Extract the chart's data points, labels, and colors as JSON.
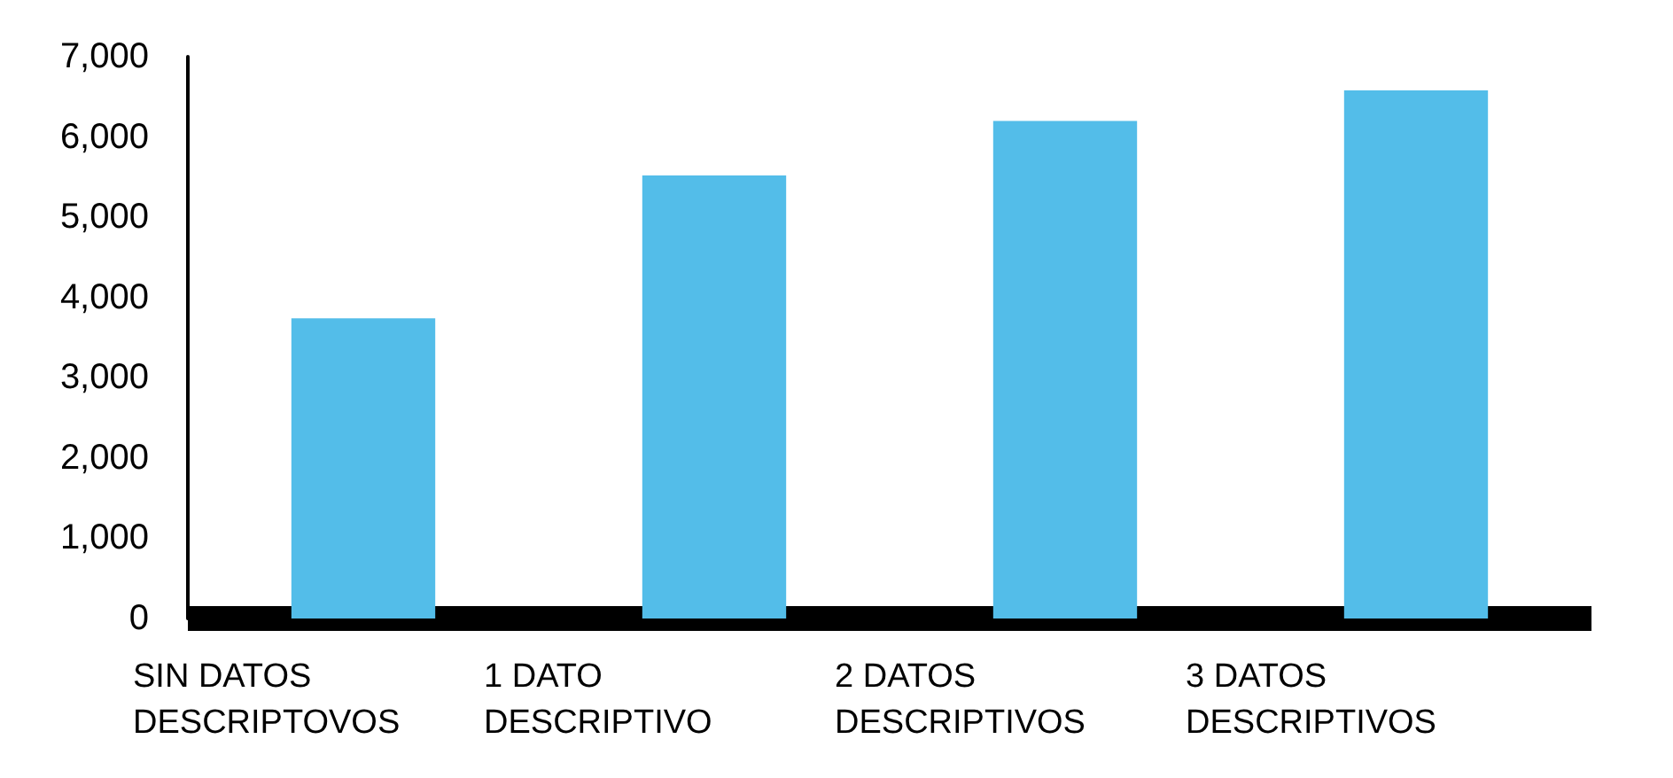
{
  "chart_data": {
    "type": "bar",
    "categories": [
      "SIN DATOS DESCRIPTOVOS",
      "1 DATO DESCRIPTIVO",
      "2 DATOS DESCRIPTIVOS",
      "3 DATOS DESCRIPTIVOS"
    ],
    "values": [
      3740,
      5520,
      6200,
      6580
    ],
    "color": "#53bde9",
    "ylim": [
      0,
      7000
    ],
    "yticks": [
      0,
      {
        "value": 1000,
        "label": "1,000"
      },
      {
        "value": 2000,
        "label": "2,000"
      },
      {
        "value": 3000,
        "label": "3,000"
      },
      {
        "value": 4000,
        "label": "4,000"
      },
      {
        "value": 5000,
        "label": "5,000"
      },
      {
        "value": 6000,
        "label": "6,000"
      },
      {
        "value": 7000,
        "label": "7,000"
      }
    ],
    "grid": false
  }
}
